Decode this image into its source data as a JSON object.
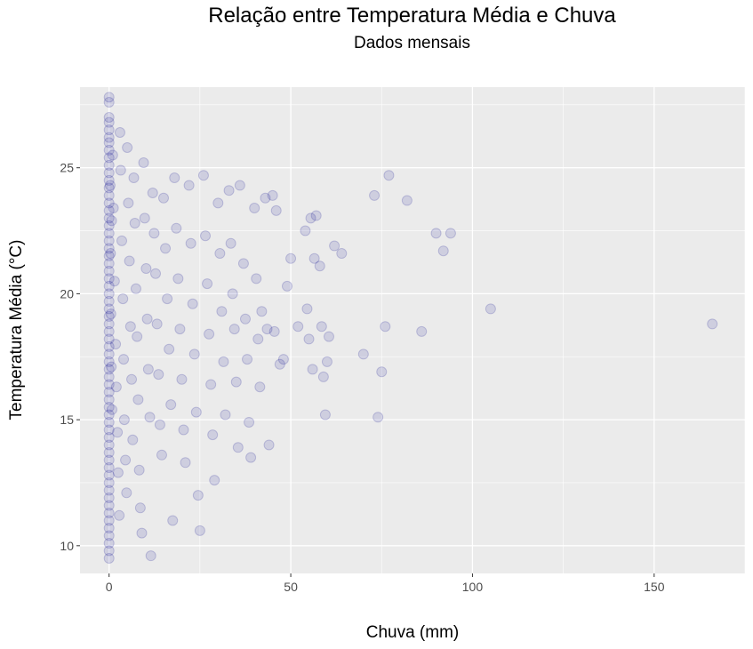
{
  "chart_data": {
    "type": "scatter",
    "title": "Relação entre Temperatura Média e Chuva",
    "subtitle": "Dados mensais",
    "xlabel": "Chuva (mm)",
    "ylabel": "Temperatura Média (°C)",
    "xlim": [
      -8,
      175
    ],
    "ylim": [
      8.9,
      28.2
    ],
    "x_ticks": [
      0,
      50,
      100,
      150
    ],
    "x_tick_labels": [
      "0",
      "50",
      "100",
      "150"
    ],
    "y_ticks": [
      10,
      15,
      20,
      25
    ],
    "y_tick_labels": [
      "10",
      "15",
      "20",
      "25"
    ],
    "grid": true,
    "legend": "none",
    "point_color": "#00008B",
    "point_alpha": 0.12,
    "panel_background": "#EBEBEB",
    "grid_color": "#FFFFFF",
    "series": [
      {
        "points": [
          [
            0,
            27.8
          ],
          [
            0,
            27.6
          ],
          [
            0,
            27.0
          ],
          [
            0,
            26.8
          ],
          [
            0,
            26.5
          ],
          [
            0,
            26.2
          ],
          [
            0,
            26.0
          ],
          [
            0,
            25.7
          ],
          [
            0,
            25.4
          ],
          [
            0,
            25.1
          ],
          [
            0,
            24.8
          ],
          [
            0,
            24.5
          ],
          [
            0,
            24.2
          ],
          [
            0,
            23.9
          ],
          [
            0,
            23.6
          ],
          [
            0,
            23.3
          ],
          [
            0,
            23.0
          ],
          [
            0,
            22.7
          ],
          [
            0,
            22.4
          ],
          [
            0,
            22.1
          ],
          [
            0,
            21.8
          ],
          [
            0,
            21.5
          ],
          [
            0,
            21.2
          ],
          [
            0,
            20.9
          ],
          [
            0,
            20.6
          ],
          [
            0,
            20.3
          ],
          [
            0,
            20.0
          ],
          [
            0,
            19.7
          ],
          [
            0,
            19.4
          ],
          [
            0,
            19.1
          ],
          [
            0,
            18.8
          ],
          [
            0,
            18.5
          ],
          [
            0,
            18.2
          ],
          [
            0,
            17.9
          ],
          [
            0,
            17.6
          ],
          [
            0,
            17.3
          ],
          [
            0,
            17.0
          ],
          [
            0,
            16.7
          ],
          [
            0,
            16.4
          ],
          [
            0,
            16.1
          ],
          [
            0,
            15.8
          ],
          [
            0,
            15.5
          ],
          [
            0,
            15.2
          ],
          [
            0,
            14.9
          ],
          [
            0,
            14.6
          ],
          [
            0,
            14.3
          ],
          [
            0,
            14.0
          ],
          [
            0,
            13.7
          ],
          [
            0,
            13.4
          ],
          [
            0,
            13.1
          ],
          [
            0,
            12.8
          ],
          [
            0,
            12.5
          ],
          [
            0,
            12.2
          ],
          [
            0,
            11.9
          ],
          [
            0,
            11.6
          ],
          [
            0,
            11.3
          ],
          [
            0,
            11.0
          ],
          [
            0,
            10.7
          ],
          [
            0,
            10.4
          ],
          [
            0,
            10.1
          ],
          [
            0,
            9.8
          ],
          [
            0,
            9.5
          ],
          [
            0.3,
            24.3
          ],
          [
            0.4,
            21.6
          ],
          [
            0.5,
            19.2
          ],
          [
            0.6,
            17.1
          ],
          [
            0.8,
            15.4
          ],
          [
            0.7,
            22.9
          ],
          [
            1.0,
            25.5
          ],
          [
            1.2,
            23.4
          ],
          [
            1.5,
            20.5
          ],
          [
            1.8,
            18.0
          ],
          [
            2.0,
            16.3
          ],
          [
            2.3,
            14.5
          ],
          [
            2.5,
            12.9
          ],
          [
            2.8,
            11.2
          ],
          [
            3.0,
            26.4
          ],
          [
            3.2,
            24.9
          ],
          [
            3.5,
            22.1
          ],
          [
            3.8,
            19.8
          ],
          [
            4.0,
            17.4
          ],
          [
            4.2,
            15.0
          ],
          [
            4.5,
            13.4
          ],
          [
            4.8,
            12.1
          ],
          [
            5.0,
            25.8
          ],
          [
            5.3,
            23.6
          ],
          [
            5.6,
            21.3
          ],
          [
            5.9,
            18.7
          ],
          [
            6.2,
            16.6
          ],
          [
            6.5,
            14.2
          ],
          [
            6.8,
            24.6
          ],
          [
            7.1,
            22.8
          ],
          [
            7.4,
            20.2
          ],
          [
            7.7,
            18.3
          ],
          [
            8.0,
            15.8
          ],
          [
            8.3,
            13.0
          ],
          [
            8.6,
            11.5
          ],
          [
            9.0,
            10.5
          ],
          [
            9.5,
            25.2
          ],
          [
            9.8,
            23.0
          ],
          [
            10.2,
            21.0
          ],
          [
            10.5,
            19.0
          ],
          [
            10.8,
            17.0
          ],
          [
            11.2,
            15.1
          ],
          [
            11.5,
            9.6
          ],
          [
            12.0,
            24.0
          ],
          [
            12.4,
            22.4
          ],
          [
            12.8,
            20.8
          ],
          [
            13.2,
            18.8
          ],
          [
            13.6,
            16.8
          ],
          [
            14.0,
            14.8
          ],
          [
            14.5,
            13.6
          ],
          [
            15.0,
            23.8
          ],
          [
            15.5,
            21.8
          ],
          [
            16.0,
            19.8
          ],
          [
            16.5,
            17.8
          ],
          [
            17.0,
            15.6
          ],
          [
            17.5,
            11.0
          ],
          [
            18.0,
            24.6
          ],
          [
            18.5,
            22.6
          ],
          [
            19.0,
            20.6
          ],
          [
            19.5,
            18.6
          ],
          [
            20.0,
            16.6
          ],
          [
            20.5,
            14.6
          ],
          [
            21.0,
            13.3
          ],
          [
            22.0,
            24.3
          ],
          [
            22.5,
            22.0
          ],
          [
            23.0,
            19.6
          ],
          [
            23.5,
            17.6
          ],
          [
            24.0,
            15.3
          ],
          [
            24.5,
            12.0
          ],
          [
            25.0,
            10.6
          ],
          [
            26.0,
            24.7
          ],
          [
            26.5,
            22.3
          ],
          [
            27.0,
            20.4
          ],
          [
            27.5,
            18.4
          ],
          [
            28.0,
            16.4
          ],
          [
            28.5,
            14.4
          ],
          [
            29.0,
            12.6
          ],
          [
            30.0,
            23.6
          ],
          [
            30.5,
            21.6
          ],
          [
            31.0,
            19.3
          ],
          [
            31.5,
            17.3
          ],
          [
            32.0,
            15.2
          ],
          [
            33.0,
            24.1
          ],
          [
            33.5,
            22.0
          ],
          [
            34.0,
            20.0
          ],
          [
            34.5,
            18.6
          ],
          [
            35.0,
            16.5
          ],
          [
            35.5,
            13.9
          ],
          [
            36.0,
            24.3
          ],
          [
            37.0,
            21.2
          ],
          [
            37.5,
            19.0
          ],
          [
            38.0,
            17.4
          ],
          [
            38.5,
            14.9
          ],
          [
            39.0,
            13.5
          ],
          [
            40.0,
            23.4
          ],
          [
            40.5,
            20.6
          ],
          [
            41.0,
            18.2
          ],
          [
            41.5,
            16.3
          ],
          [
            42.0,
            19.3
          ],
          [
            43.0,
            23.8
          ],
          [
            43.5,
            18.6
          ],
          [
            44.0,
            14.0
          ],
          [
            45.0,
            23.9
          ],
          [
            45.5,
            18.5
          ],
          [
            46.0,
            23.3
          ],
          [
            47.0,
            17.2
          ],
          [
            48.0,
            17.4
          ],
          [
            49.0,
            20.3
          ],
          [
            50.0,
            21.4
          ],
          [
            52.0,
            18.7
          ],
          [
            54.0,
            22.5
          ],
          [
            54.5,
            19.4
          ],
          [
            55.0,
            18.2
          ],
          [
            55.5,
            23.0
          ],
          [
            56.0,
            17.0
          ],
          [
            56.5,
            21.4
          ],
          [
            57.0,
            23.1
          ],
          [
            58.0,
            21.1
          ],
          [
            58.5,
            18.7
          ],
          [
            59.0,
            16.7
          ],
          [
            59.5,
            15.2
          ],
          [
            60.0,
            17.3
          ],
          [
            60.5,
            18.3
          ],
          [
            62.0,
            21.9
          ],
          [
            64.0,
            21.6
          ],
          [
            70.0,
            17.6
          ],
          [
            73.0,
            23.9
          ],
          [
            74.0,
            15.1
          ],
          [
            75.0,
            16.9
          ],
          [
            76.0,
            18.7
          ],
          [
            77.0,
            24.7
          ],
          [
            82.0,
            23.7
          ],
          [
            86.0,
            18.5
          ],
          [
            90.0,
            22.4
          ],
          [
            92.0,
            21.7
          ],
          [
            94.0,
            22.4
          ],
          [
            105.0,
            19.4
          ],
          [
            166.0,
            18.8
          ]
        ]
      }
    ]
  }
}
